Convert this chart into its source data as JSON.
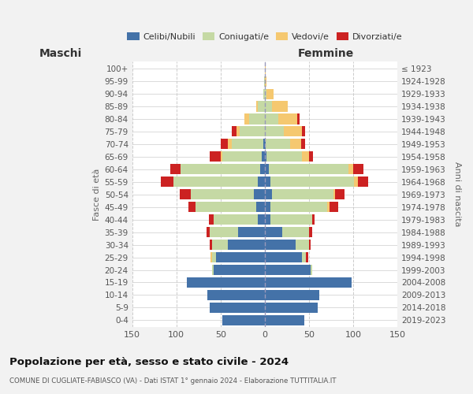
{
  "age_groups": [
    "0-4",
    "5-9",
    "10-14",
    "15-19",
    "20-24",
    "25-29",
    "30-34",
    "35-39",
    "40-44",
    "45-49",
    "50-54",
    "55-59",
    "60-64",
    "65-69",
    "70-74",
    "75-79",
    "80-84",
    "85-89",
    "90-94",
    "95-99",
    "100+"
  ],
  "birth_years": [
    "2019-2023",
    "2014-2018",
    "2009-2013",
    "2004-2008",
    "1999-2003",
    "1994-1998",
    "1989-1993",
    "1984-1988",
    "1979-1983",
    "1974-1978",
    "1969-1973",
    "1964-1968",
    "1959-1963",
    "1954-1958",
    "1949-1953",
    "1944-1948",
    "1939-1943",
    "1934-1938",
    "1929-1933",
    "1924-1928",
    "≤ 1923"
  ],
  "male_celibe": [
    48,
    62,
    65,
    88,
    58,
    55,
    42,
    30,
    8,
    10,
    12,
    8,
    5,
    3,
    2,
    0,
    0,
    0,
    0,
    0,
    0
  ],
  "male_coniugato": [
    0,
    0,
    0,
    0,
    2,
    5,
    18,
    32,
    50,
    68,
    72,
    95,
    90,
    45,
    35,
    28,
    18,
    8,
    2,
    1,
    0
  ],
  "male_vedovo": [
    0,
    0,
    0,
    0,
    0,
    1,
    0,
    0,
    0,
    0,
    0,
    0,
    0,
    2,
    5,
    4,
    5,
    2,
    0,
    0,
    0
  ],
  "male_divorziato": [
    0,
    0,
    0,
    0,
    0,
    0,
    2,
    4,
    5,
    8,
    12,
    15,
    12,
    12,
    8,
    5,
    0,
    0,
    0,
    0,
    0
  ],
  "female_celibe": [
    45,
    60,
    62,
    98,
    52,
    42,
    35,
    20,
    6,
    6,
    8,
    6,
    5,
    2,
    1,
    0,
    0,
    0,
    0,
    0,
    0
  ],
  "female_coniugato": [
    0,
    0,
    0,
    0,
    2,
    5,
    15,
    30,
    48,
    65,
    70,
    95,
    90,
    40,
    28,
    22,
    15,
    8,
    2,
    0,
    0
  ],
  "female_vedovo": [
    0,
    0,
    0,
    0,
    0,
    0,
    0,
    0,
    0,
    2,
    2,
    4,
    5,
    8,
    12,
    20,
    22,
    18,
    8,
    2,
    1
  ],
  "female_divorziato": [
    0,
    0,
    0,
    0,
    0,
    2,
    2,
    4,
    2,
    10,
    10,
    12,
    12,
    5,
    5,
    4,
    2,
    0,
    0,
    0,
    0
  ],
  "colors": {
    "celibe": "#4472a8",
    "coniugato": "#c5d9a4",
    "vedovo": "#f5c870",
    "divorziato": "#cc2222"
  },
  "xlim": 150,
  "title": "Popolazione per età, sesso e stato civile - 2024",
  "subtitle": "COMUNE DI CUGLIATE-FABIASCO (VA) - Dati ISTAT 1° gennaio 2024 - Elaborazione TUTTITALIA.IT",
  "xlabel_left": "Maschi",
  "xlabel_right": "Femmine",
  "ylabel_left": "Fasce di età",
  "ylabel_right": "Anni di nascita",
  "legend_labels": [
    "Celibi/Nubili",
    "Coniugati/e",
    "Vedovi/e",
    "Divorziati/e"
  ],
  "bg_color": "#f2f2f2",
  "plot_bg_color": "#ffffff"
}
